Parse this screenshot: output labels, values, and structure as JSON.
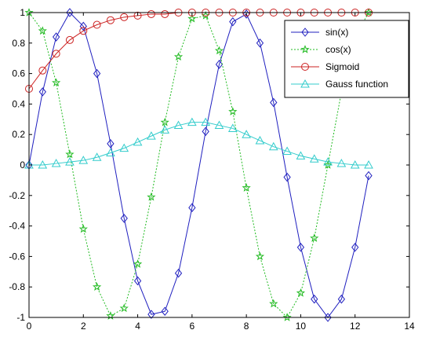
{
  "chart_data": {
    "type": "line",
    "title": "",
    "xlabel": "",
    "ylabel": "",
    "xlim": [
      0,
      14
    ],
    "ylim": [
      -1,
      1
    ],
    "x_ticks": [
      "0",
      "2",
      "4",
      "6",
      "8",
      "10",
      "12",
      "14"
    ],
    "y_ticks": [
      "-1",
      "-0.8",
      "-0.6",
      "-0.4",
      "-0.2",
      "0",
      "0.2",
      "0.4",
      "0.6",
      "0.8",
      "1"
    ],
    "grid": false,
    "legend_position": "top-right",
    "x": [
      0,
      0.5,
      1,
      1.5,
      2,
      2.5,
      3,
      3.5,
      4,
      4.5,
      5,
      5.5,
      6,
      6.5,
      7,
      7.5,
      8,
      8.5,
      9,
      9.5,
      10,
      10.5,
      11,
      11.5,
      12,
      12.5
    ],
    "series": [
      {
        "name": "sin(x)",
        "color": "#1f1fbf",
        "line_style": "solid",
        "marker": "diamond",
        "values": [
          0,
          0.48,
          0.84,
          1.0,
          0.91,
          0.6,
          0.14,
          -0.35,
          -0.76,
          -0.98,
          -0.96,
          -0.71,
          -0.28,
          0.22,
          0.66,
          0.94,
          0.99,
          0.8,
          0.41,
          -0.08,
          -0.54,
          -0.88,
          -1.0,
          -0.88,
          -0.54,
          -0.07
        ]
      },
      {
        "name": "cos(x)",
        "color": "#22bb22",
        "line_style": "dotted",
        "marker": "star",
        "values": [
          1.0,
          0.88,
          0.54,
          0.07,
          -0.42,
          -0.8,
          -0.99,
          -0.94,
          -0.65,
          -0.21,
          0.28,
          0.71,
          0.96,
          0.98,
          0.75,
          0.35,
          -0.15,
          -0.6,
          -0.91,
          -1.0,
          -0.84,
          -0.48,
          0.0,
          0.48,
          0.84,
          1.0
        ]
      },
      {
        "name": "Sigmoid",
        "color": "#cc2222",
        "line_style": "solid",
        "marker": "circle",
        "values": [
          0.5,
          0.62,
          0.73,
          0.82,
          0.88,
          0.92,
          0.95,
          0.97,
          0.98,
          0.99,
          0.99,
          1.0,
          1.0,
          1.0,
          1.0,
          1.0,
          1.0,
          1.0,
          1.0,
          1.0,
          1.0,
          1.0,
          1.0,
          1.0,
          1.0,
          1.0
        ]
      },
      {
        "name": "Gauss function",
        "color": "#33cccc",
        "line_style": "solid",
        "marker": "triangle",
        "values": [
          0.0,
          0.0,
          0.01,
          0.02,
          0.03,
          0.05,
          0.08,
          0.11,
          0.15,
          0.19,
          0.23,
          0.26,
          0.28,
          0.28,
          0.26,
          0.24,
          0.2,
          0.16,
          0.12,
          0.09,
          0.06,
          0.04,
          0.02,
          0.01,
          0.0,
          0.0
        ]
      }
    ]
  }
}
